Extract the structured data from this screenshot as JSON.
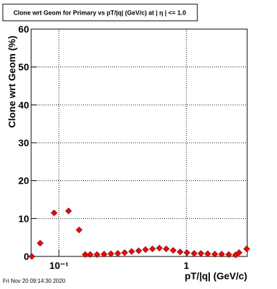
{
  "chart_data": {
    "type": "scatter",
    "title": "Clone wrt Geom for Primary vs pT/|q| (GeV/c) at |  η | <= 1.0",
    "x_label": "pT/|q| (GeV/c)",
    "y_label": "Clone wrt Geom (%)",
    "x": [
      0.0614,
      0.0713,
      0.0917,
      0.119,
      0.144,
      0.161,
      0.176,
      0.199,
      0.226,
      0.256,
      0.29,
      0.328,
      0.372,
      0.422,
      0.478,
      0.542,
      0.614,
      0.695,
      0.788,
      0.893,
      1.01,
      1.15,
      1.3,
      1.47,
      1.67,
      1.89,
      2.15,
      2.43,
      2.59,
      2.97
    ],
    "values": [
      0,
      3.5,
      11.5,
      12,
      7,
      0.5,
      0.5,
      0.5,
      0.6,
      0.7,
      0.8,
      1.0,
      1.3,
      1.5,
      1.8,
      2.0,
      2.2,
      2.0,
      1.6,
      1.2,
      1.0,
      0.8,
      0.8,
      0.7,
      0.6,
      0.6,
      0.5,
      0.4,
      1.0,
      2.0
    ],
    "color": "#ff0000",
    "xlim": [
      0.0606,
      3.0
    ],
    "ylim": [
      0,
      60
    ],
    "xticks": [
      {
        "value": 0.1,
        "label": "10⁻¹"
      },
      1
    ],
    "yticks": [
      0,
      10,
      20,
      30,
      40,
      50,
      60
    ],
    "log_x": true,
    "grid": true
  },
  "footer": "Fri Nov 20 09:14:30 2020"
}
